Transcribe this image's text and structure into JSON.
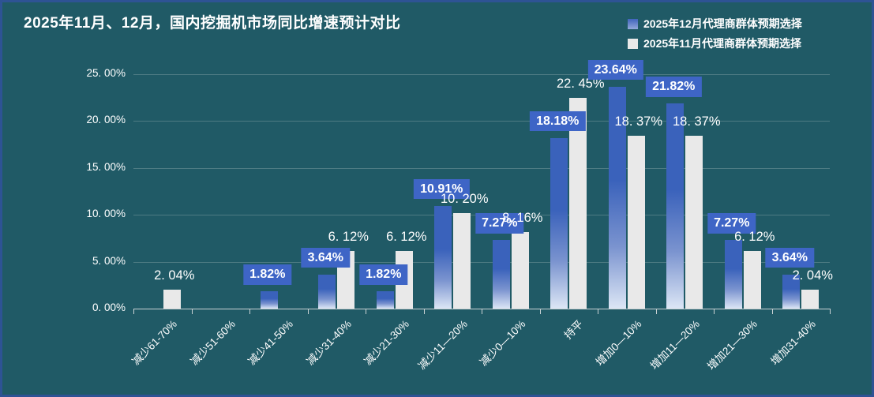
{
  "title": "2025年11月、12月，国内挖掘机市场同比增速预计对比",
  "legend": {
    "items": [
      {
        "label": "2025年12月代理商群体预期选择",
        "swatch": "blue"
      },
      {
        "label": "2025年11月代理商群体预期选择",
        "swatch": "white"
      }
    ]
  },
  "chart_data": {
    "type": "bar",
    "title": "2025年11月、12月，国内挖掘机市场同比增速预计对比",
    "categories": [
      "减少61-70%",
      "减少51-60%",
      "减少41-50%",
      "减少31-40%",
      "减少21-30%",
      "减少11—20%",
      "减少0—10%",
      "持平",
      "增加0—10%",
      "增加11—20%",
      "增加21—30%",
      "增加31-40%"
    ],
    "series": [
      {
        "name": "2025年12月代理商群体预期选择",
        "values": [
          0,
          0,
          1.82,
          3.64,
          1.82,
          10.91,
          7.27,
          18.18,
          23.64,
          21.82,
          7.27,
          3.64
        ],
        "data_labels": [
          "",
          "",
          "1.82%",
          "3.64%",
          "1.82%",
          "10.91%",
          "7.27%",
          "18.18%",
          "23.64%",
          "21.82%",
          "7.27%",
          "3.64%"
        ]
      },
      {
        "name": "2025年11月代理商群体预期选择",
        "values": [
          2.04,
          0,
          0,
          6.12,
          6.12,
          10.2,
          8.16,
          22.45,
          18.37,
          18.37,
          6.12,
          2.04
        ],
        "data_labels": [
          "2. 04%",
          "",
          "",
          "6. 12%",
          "6. 12%",
          "10. 20%",
          "8. 16%",
          "22. 45%",
          "18. 37%",
          "18. 37%",
          "6. 12%",
          "2. 04%"
        ]
      }
    ],
    "xlabel": "",
    "ylabel": "",
    "ylim": [
      0,
      25
    ],
    "ytick_step": 5,
    "ytick_labels": [
      "0. 00%",
      "5. 00%",
      "10. 00%",
      "15. 00%",
      "20. 00%",
      "25. 00%"
    ],
    "grid": true,
    "legend_position": "top-right"
  },
  "colors": {
    "background": "#205a66",
    "frame_border": "#2e5394",
    "bar_blue": "#3a62bb",
    "bar_blue_fade": "#dce6f5",
    "bar_white": "#e9e9e9",
    "label_box_blue": "#3e65c6",
    "gridline": "#4d7b83",
    "axis": "#c9d2d4",
    "text": "#ffffff"
  }
}
